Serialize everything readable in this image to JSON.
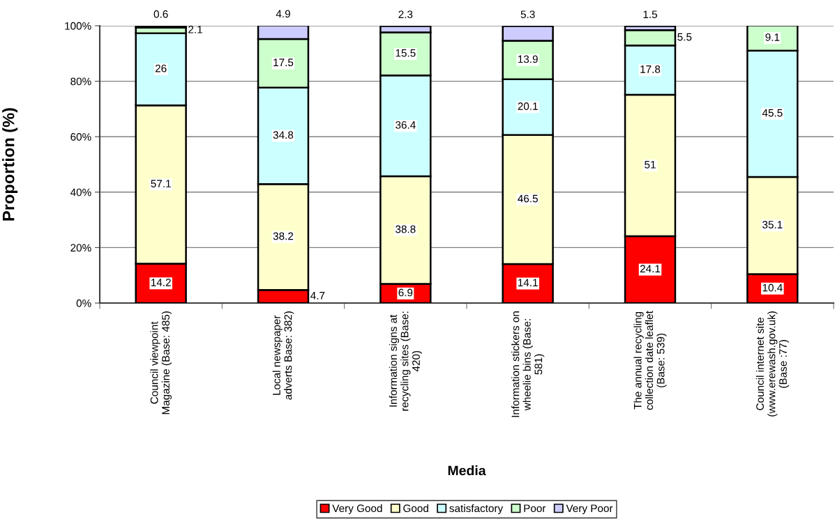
{
  "chart_data": {
    "type": "bar",
    "stacked": true,
    "xlabel": "Media",
    "ylabel": "Proportion (%)",
    "categories": [
      "Council viewpoint Magazine (Base: 485)",
      "Local newspaper adverts Base: 382)",
      "Information signs at recycling sites (Base: 420)",
      "Information stickers on wheelie bins (Base: 581)",
      "The annual recycling collection date leaflet (Base: 539)",
      "Council internet site (www.erewash.gov.uk) (Base :77)"
    ],
    "series": [
      {
        "name": "Very Good",
        "color": "#ff0000",
        "values": [
          14.2,
          4.7,
          6.9,
          14.1,
          24.1,
          10.4
        ]
      },
      {
        "name": "Good",
        "color": "#ffffcc",
        "values": [
          57.1,
          38.2,
          38.8,
          46.5,
          51,
          35.1
        ]
      },
      {
        "name": "satisfactory",
        "color": "#ccffff",
        "values": [
          26,
          34.8,
          36.4,
          20.1,
          17.8,
          45.5
        ]
      },
      {
        "name": "Poor",
        "color": "#ccffcc",
        "values": [
          2.1,
          17.5,
          15.5,
          13.9,
          5.5,
          9.1
        ]
      },
      {
        "name": "Very Poor",
        "color": "#ccccff",
        "values": [
          0.6,
          4.9,
          2.3,
          5.3,
          1.5,
          null
        ]
      }
    ],
    "ylim": [
      0,
      100
    ],
    "yticks": [
      {
        "value": 0,
        "label": "0%"
      },
      {
        "value": 20,
        "label": "20%"
      },
      {
        "value": 40,
        "label": "40%"
      },
      {
        "value": 60,
        "label": "60%"
      },
      {
        "value": 80,
        "label": "80%"
      },
      {
        "value": 100,
        "label": "100%"
      }
    ],
    "grid": "y",
    "legend": "bottom",
    "data_labels": true
  }
}
